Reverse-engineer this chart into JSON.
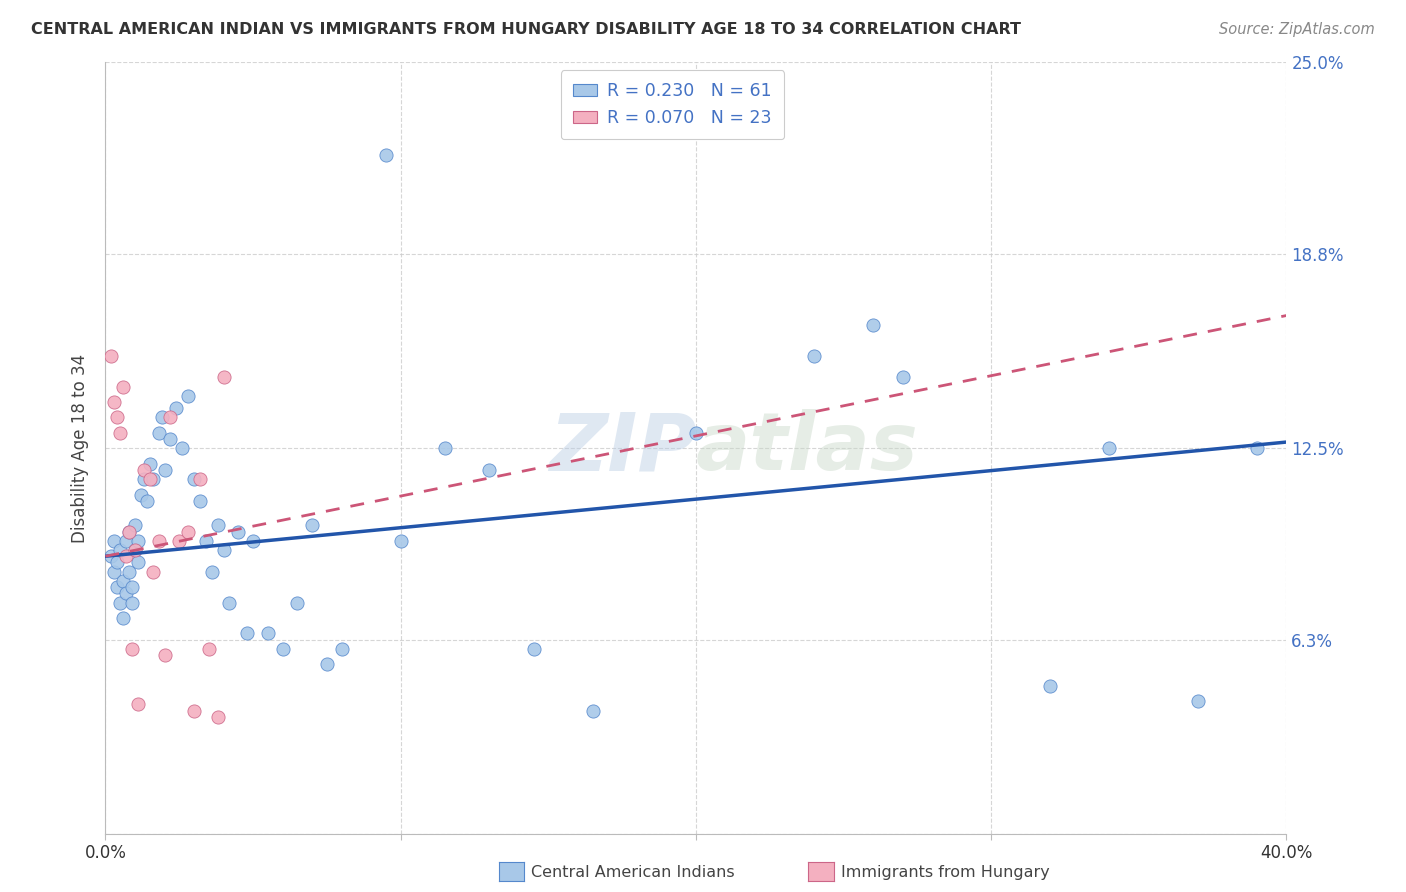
{
  "title": "CENTRAL AMERICAN INDIAN VS IMMIGRANTS FROM HUNGARY DISABILITY AGE 18 TO 34 CORRELATION CHART",
  "source": "Source: ZipAtlas.com",
  "ylabel": "Disability Age 18 to 34",
  "xlabel": "",
  "xlim": [
    0.0,
    0.4
  ],
  "ylim": [
    0.0,
    0.25
  ],
  "ytick_positions": [
    0.0,
    0.063,
    0.125,
    0.188,
    0.25
  ],
  "ytick_labels_right": [
    "",
    "6.3%",
    "12.5%",
    "18.8%",
    "25.0%"
  ],
  "xtick_positions": [
    0.0,
    0.1,
    0.2,
    0.3,
    0.4
  ],
  "xtick_labels": [
    "0.0%",
    "",
    "",
    "",
    "40.0%"
  ],
  "watermark": "ZIPatlas",
  "legend_R1": "R = 0.230",
  "legend_N1": "N = 61",
  "legend_R2": "R = 0.070",
  "legend_N2": "N = 23",
  "color_blue": "#A8C8E8",
  "color_pink": "#F4B0C0",
  "edge_blue": "#5588CC",
  "edge_pink": "#CC6688",
  "line_blue_color": "#2255AA",
  "line_pink_color": "#CC5577",
  "background": "#FFFFFF",
  "grid_color": "#CCCCCC",
  "blue_line_x0": 0.0,
  "blue_line_y0": 0.09,
  "blue_line_x1": 0.4,
  "blue_line_y1": 0.127,
  "pink_line_x0": 0.0,
  "pink_line_y0": 0.09,
  "pink_line_x1": 0.4,
  "pink_line_y1": 0.168,
  "blue_x": [
    0.002,
    0.003,
    0.003,
    0.004,
    0.004,
    0.005,
    0.005,
    0.006,
    0.006,
    0.007,
    0.007,
    0.008,
    0.008,
    0.009,
    0.009,
    0.01,
    0.01,
    0.011,
    0.011,
    0.012,
    0.013,
    0.014,
    0.015,
    0.016,
    0.018,
    0.019,
    0.02,
    0.022,
    0.024,
    0.026,
    0.028,
    0.03,
    0.032,
    0.034,
    0.036,
    0.038,
    0.04,
    0.042,
    0.045,
    0.048,
    0.05,
    0.055,
    0.06,
    0.065,
    0.07,
    0.075,
    0.08,
    0.095,
    0.1,
    0.115,
    0.13,
    0.145,
    0.165,
    0.2,
    0.24,
    0.26,
    0.27,
    0.32,
    0.34,
    0.37,
    0.39
  ],
  "blue_y": [
    0.09,
    0.085,
    0.095,
    0.088,
    0.08,
    0.075,
    0.092,
    0.07,
    0.082,
    0.078,
    0.095,
    0.085,
    0.098,
    0.08,
    0.075,
    0.092,
    0.1,
    0.088,
    0.095,
    0.11,
    0.115,
    0.108,
    0.12,
    0.115,
    0.13,
    0.135,
    0.118,
    0.128,
    0.138,
    0.125,
    0.142,
    0.115,
    0.108,
    0.095,
    0.085,
    0.1,
    0.092,
    0.075,
    0.098,
    0.065,
    0.095,
    0.065,
    0.06,
    0.075,
    0.1,
    0.055,
    0.06,
    0.22,
    0.095,
    0.125,
    0.118,
    0.06,
    0.04,
    0.13,
    0.155,
    0.165,
    0.148,
    0.048,
    0.125,
    0.043,
    0.125
  ],
  "pink_x": [
    0.002,
    0.003,
    0.004,
    0.005,
    0.006,
    0.007,
    0.008,
    0.009,
    0.01,
    0.011,
    0.013,
    0.015,
    0.016,
    0.018,
    0.02,
    0.022,
    0.025,
    0.028,
    0.03,
    0.032,
    0.035,
    0.038,
    0.04
  ],
  "pink_y": [
    0.155,
    0.14,
    0.135,
    0.13,
    0.145,
    0.09,
    0.098,
    0.06,
    0.092,
    0.042,
    0.118,
    0.115,
    0.085,
    0.095,
    0.058,
    0.135,
    0.095,
    0.098,
    0.04,
    0.115,
    0.06,
    0.038,
    0.148
  ]
}
